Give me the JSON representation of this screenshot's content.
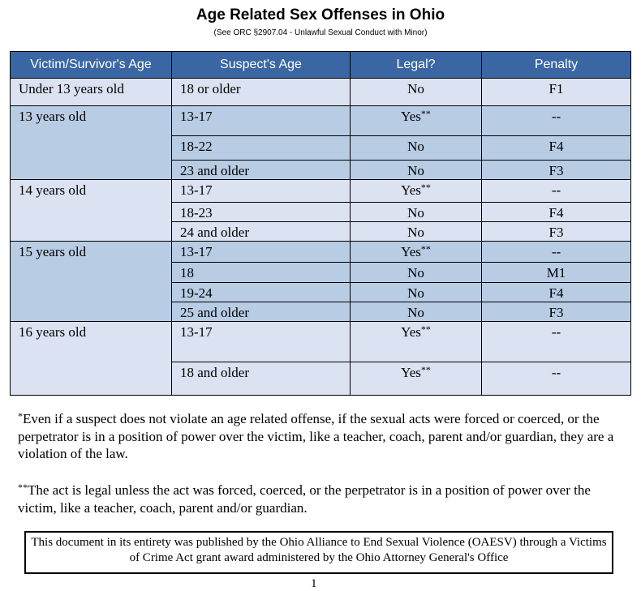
{
  "header": {
    "title": "Age Related Sex Offenses in Ohio",
    "subtitle": "(See ORC §2907.04 - Unlawful Sexual Conduct with Minor)"
  },
  "table": {
    "columns": [
      "Victim/Survivor's Age",
      "Suspect's Age",
      "Legal?",
      "Penalty"
    ],
    "groups": [
      {
        "age": "Under 13 years old",
        "rows": [
          {
            "suspect": "18 or older",
            "legal": "No",
            "penalty": "F1"
          }
        ]
      },
      {
        "age": "13 years old",
        "rows": [
          {
            "suspect": "13-17",
            "legal": "Yes",
            "note": "**",
            "penalty": "--"
          },
          {
            "suspect": "18-22",
            "legal": "No",
            "penalty": "F4"
          },
          {
            "suspect": "23 and older",
            "legal": "No",
            "penalty": "F3"
          }
        ]
      },
      {
        "age": "14 years old",
        "rows": [
          {
            "suspect": "13-17",
            "legal": "Yes",
            "note": "**",
            "penalty": "--"
          },
          {
            "suspect": "18-23",
            "legal": "No",
            "penalty": "F4"
          },
          {
            "suspect": "24 and older",
            "legal": "No",
            "penalty": "F3"
          }
        ]
      },
      {
        "age": "15 years old",
        "rows": [
          {
            "suspect": "13-17",
            "legal": "Yes",
            "note": "**",
            "penalty": "--"
          },
          {
            "suspect": "18",
            "legal": "No",
            "penalty": "M1"
          },
          {
            "suspect": "19-24",
            "legal": "No",
            "penalty": "F4"
          },
          {
            "suspect": "25 and older",
            "legal": "No",
            "penalty": "F3"
          }
        ]
      },
      {
        "age": "16 years old",
        "rows": [
          {
            "suspect": "13-17",
            "legal": "Yes",
            "note": "**",
            "penalty": "--"
          },
          {
            "suspect": "18 and older",
            "legal": "Yes",
            "note": "**",
            "penalty": "--"
          }
        ]
      }
    ]
  },
  "footnotes": [
    {
      "mark": "*",
      "text": "Even if a suspect does not violate an age related offense, if the sexual acts were forced or coerced, or the perpetrator is in a position of power over the victim, like a teacher, coach, parent and/or guardian, they are a violation of the law."
    },
    {
      "mark": "**",
      "text": "The act is legal unless the act was forced, coerced, or the perpetrator is in a position of power over the victim, like a teacher, coach, parent and/or guardian."
    }
  ],
  "footer": "This document in its entirety was published by the Ohio Alliance to End Sexual Violence (OAESV) through a Victims of Crime Act grant award administered by the Ohio Attorney General's Office",
  "page_number": "1"
}
